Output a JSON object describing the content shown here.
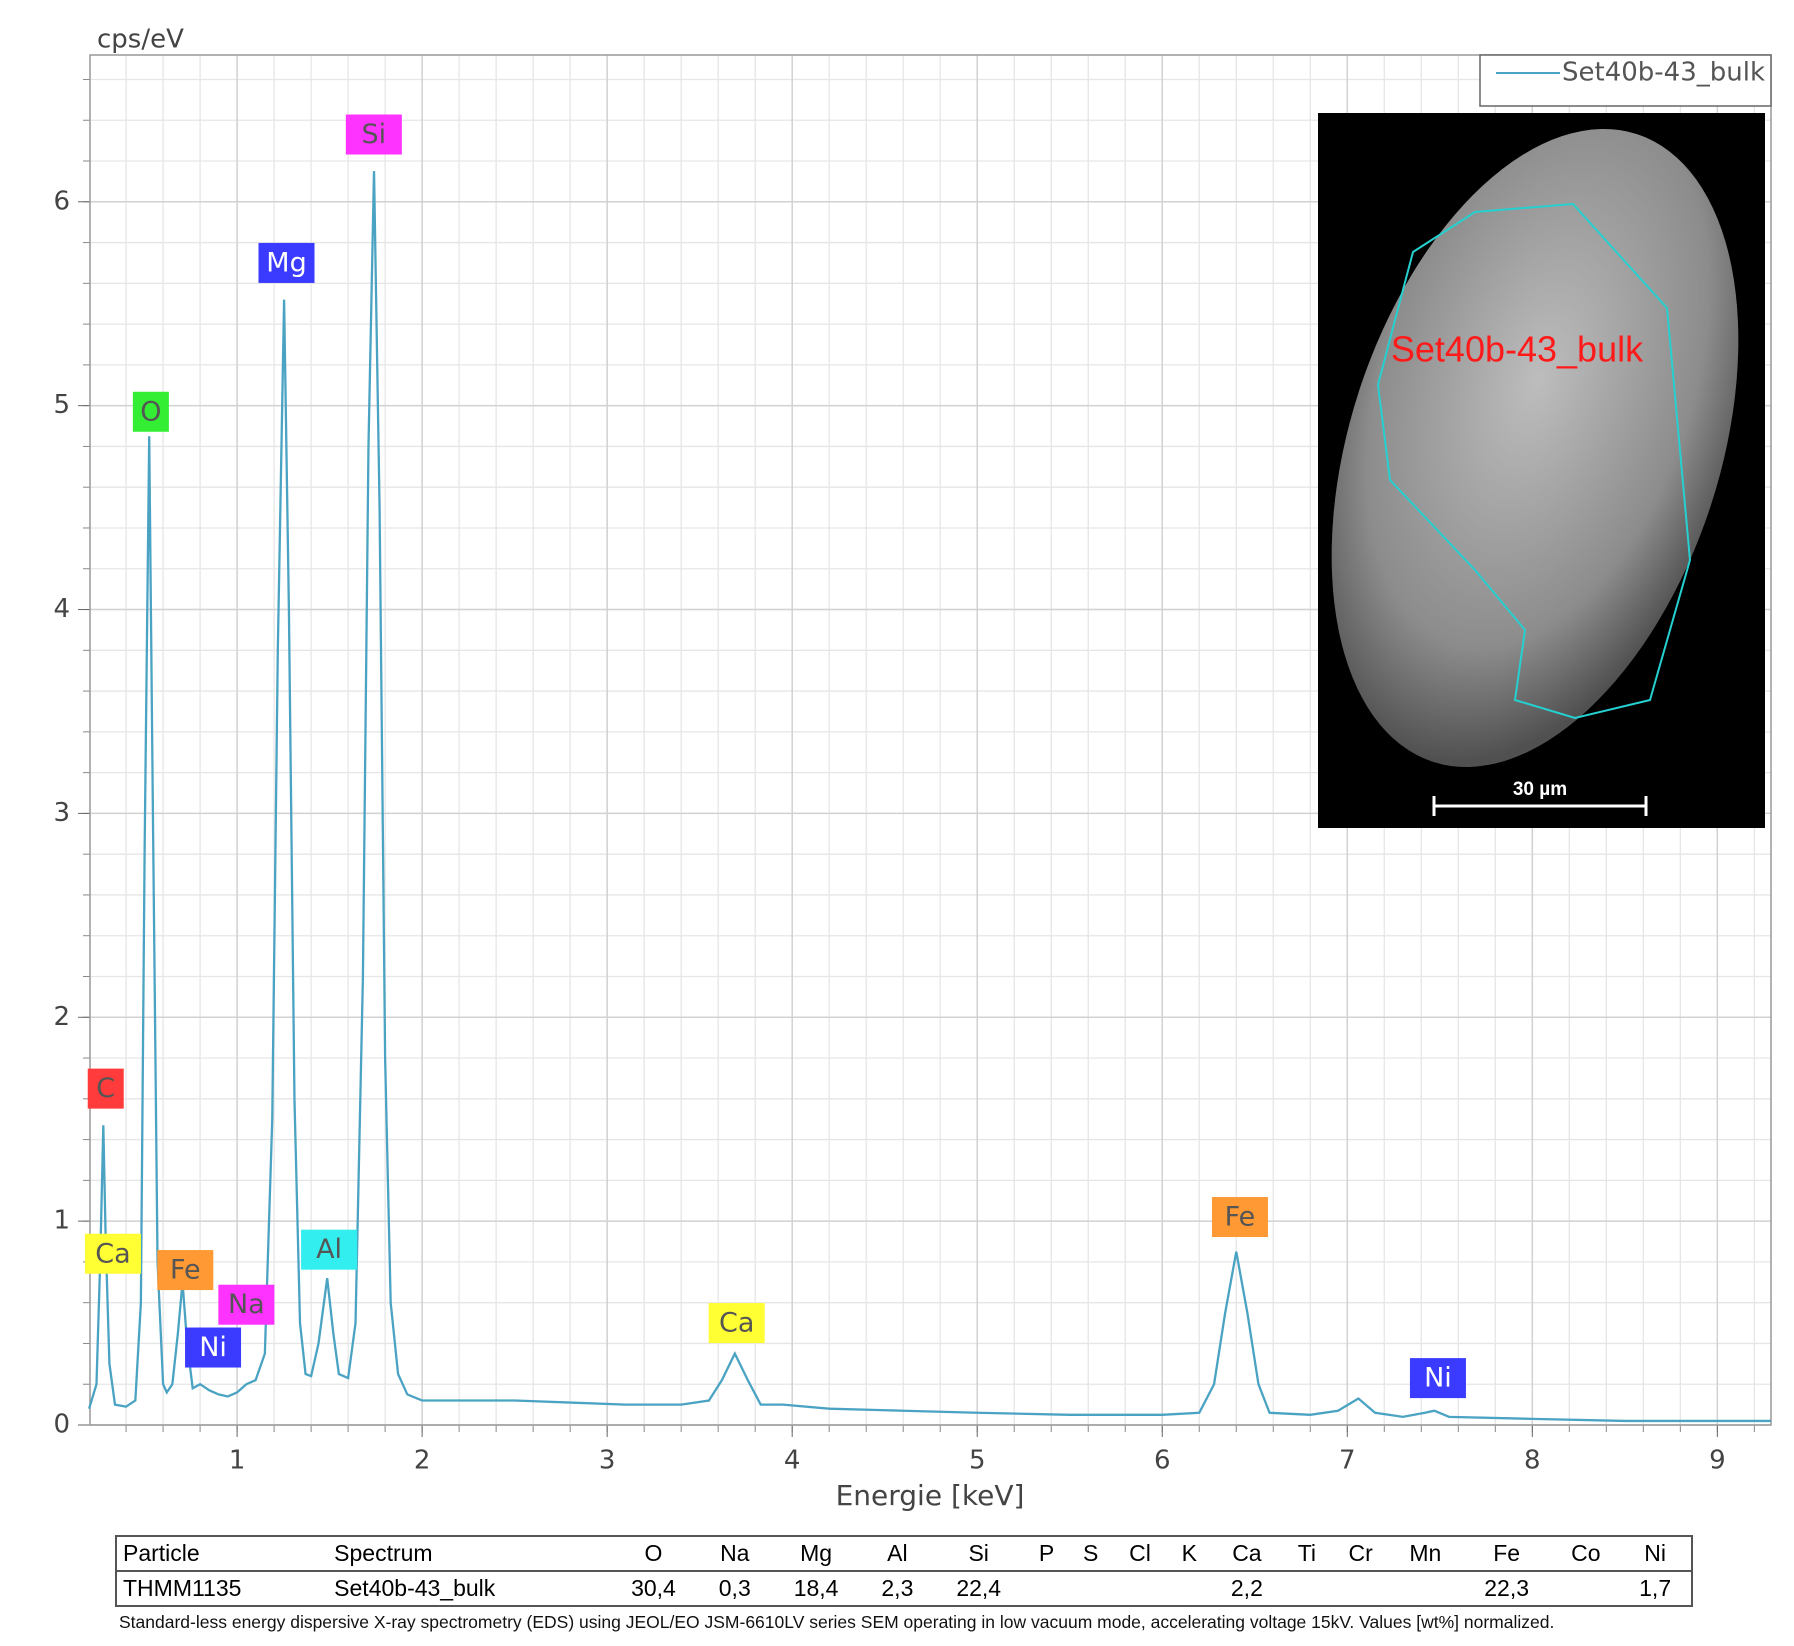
{
  "chart_data": {
    "type": "line",
    "y_label": "cps/eV",
    "x_label": "Energie [keV]",
    "x": [
      0.2,
      0.24,
      0.26,
      0.277,
      0.29,
      0.31,
      0.34,
      0.4,
      0.45,
      0.48,
      0.5,
      0.525,
      0.545,
      0.57,
      0.6,
      0.62,
      0.65,
      0.68,
      0.705,
      0.73,
      0.76,
      0.8,
      0.85,
      0.9,
      0.95,
      1.0,
      1.05,
      1.1,
      1.15,
      1.19,
      1.22,
      1.254,
      1.28,
      1.31,
      1.34,
      1.37,
      1.4,
      1.44,
      1.487,
      1.52,
      1.55,
      1.6,
      1.64,
      1.68,
      1.71,
      1.74,
      1.77,
      1.8,
      1.83,
      1.87,
      1.92,
      2.0,
      2.2,
      2.5,
      2.8,
      3.1,
      3.4,
      3.55,
      3.62,
      3.69,
      3.76,
      3.83,
      3.95,
      4.2,
      4.6,
      5.0,
      5.5,
      6.0,
      6.2,
      6.28,
      6.34,
      6.4,
      6.46,
      6.52,
      6.58,
      6.8,
      6.95,
      7.06,
      7.15,
      7.3,
      7.42,
      7.47,
      7.55,
      8.0,
      8.5,
      9.0,
      9.29
    ],
    "series": [
      {
        "name": "Set40b-43_bulk",
        "color": "#4ba3c3",
        "values": [
          0.08,
          0.2,
          0.8,
          1.47,
          0.9,
          0.3,
          0.1,
          0.09,
          0.12,
          0.6,
          2.8,
          4.85,
          3.0,
          0.8,
          0.2,
          0.16,
          0.2,
          0.45,
          0.7,
          0.4,
          0.18,
          0.2,
          0.17,
          0.15,
          0.14,
          0.16,
          0.2,
          0.22,
          0.35,
          1.5,
          3.8,
          5.52,
          4.0,
          1.6,
          0.5,
          0.25,
          0.24,
          0.4,
          0.72,
          0.45,
          0.25,
          0.23,
          0.5,
          2.2,
          4.8,
          6.15,
          4.5,
          1.8,
          0.6,
          0.25,
          0.15,
          0.12,
          0.12,
          0.12,
          0.11,
          0.1,
          0.1,
          0.12,
          0.22,
          0.35,
          0.22,
          0.1,
          0.1,
          0.08,
          0.07,
          0.06,
          0.05,
          0.05,
          0.06,
          0.2,
          0.55,
          0.85,
          0.55,
          0.2,
          0.06,
          0.05,
          0.07,
          0.13,
          0.06,
          0.04,
          0.06,
          0.07,
          0.04,
          0.03,
          0.02,
          0.02,
          0.02
        ]
      }
    ],
    "xlim": [
      0.205,
      9.29
    ],
    "ylim": [
      0,
      6.72
    ],
    "xticks": [
      1,
      2,
      3,
      4,
      5,
      6,
      7,
      8,
      9
    ],
    "yticks": [
      0,
      1,
      2,
      3,
      4,
      5,
      6
    ],
    "grid": true,
    "minor_step": 0.2,
    "legend": "top-right",
    "annotations": [
      {
        "text": "C",
        "x": 0.29,
        "y": 1.65,
        "color": "#ff3b3b"
      },
      {
        "text": "O",
        "x": 0.534,
        "y": 4.97,
        "color": "#33ee33"
      },
      {
        "text": "Mg",
        "x": 1.267,
        "y": 5.7,
        "color": "#3b3bff"
      },
      {
        "text": "Si",
        "x": 1.739,
        "y": 6.33,
        "color": "#ff33ff"
      },
      {
        "text": "Ca",
        "x": 0.329,
        "y": 0.84,
        "color": "#ffff33"
      },
      {
        "text": "Fe",
        "x": 0.72,
        "y": 0.76,
        "color": "#ff9933"
      },
      {
        "text": "Na",
        "x": 1.05,
        "y": 0.59,
        "color": "#ff33ff"
      },
      {
        "text": "Ni",
        "x": 0.87,
        "y": 0.38,
        "color": "#3b3bff"
      },
      {
        "text": "Al",
        "x": 1.497,
        "y": 0.86,
        "color": "#33eeee"
      },
      {
        "text": "Ca",
        "x": 3.7,
        "y": 0.5,
        "color": "#ffff33"
      },
      {
        "text": "Fe",
        "x": 6.42,
        "y": 1.02,
        "color": "#ff9933"
      },
      {
        "text": "Ni",
        "x": 7.49,
        "y": 0.23,
        "color": "#3b3bff"
      }
    ]
  },
  "inset": {
    "label": "Set40b-43_bulk",
    "scale_bar": "30 µm"
  },
  "table": {
    "header": [
      "Particle",
      "Spectrum",
      "O",
      "Na",
      "Mg",
      "Al",
      "Si",
      "P",
      "S",
      "Cl",
      "K",
      "Ca",
      "Ti",
      "Cr",
      "Mn",
      "Fe",
      "Co",
      "Ni"
    ],
    "rows": [
      [
        "THMM1135",
        "Set40b-43_bulk",
        "30,4",
        "0,3",
        "18,4",
        "2,3",
        "22,4",
        null,
        null,
        null,
        null,
        "2,2",
        null,
        null,
        null,
        "22,3",
        null,
        "1,7"
      ]
    ],
    "caption": "Standard-less energy dispersive X-ray spectrometry (EDS) using JEOL/EO JSM-6610LV series SEM operating in low vacuum mode, accelerating voltage 15kV. Values [wt%] normalized."
  }
}
